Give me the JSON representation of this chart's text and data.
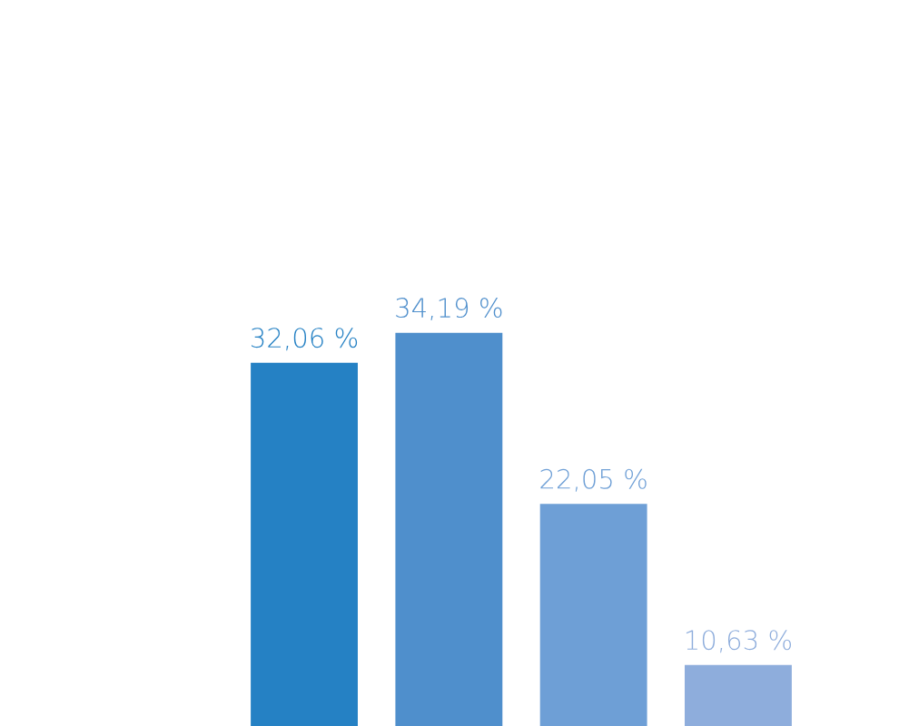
{
  "chart_data": {
    "type": "bar",
    "categories": [
      null,
      null,
      null,
      null
    ],
    "values": [
      32.06,
      34.19,
      22.05,
      10.63
    ],
    "colors": [
      "#2581c4",
      "#4f8fcc",
      "#6e9fd6",
      "#8eaddc"
    ],
    "value_labels": [
      "32,06 %",
      "34,19 %",
      "22,05 %",
      "10,63 %"
    ],
    "grid": false,
    "legend": false
  }
}
